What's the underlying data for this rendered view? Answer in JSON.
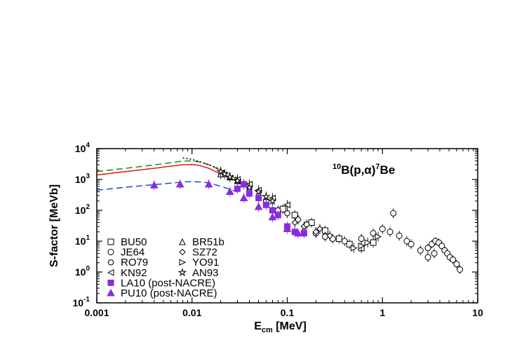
{
  "chart_data": {
    "type": "scatter",
    "title": "",
    "annotation": {
      "pre": "10",
      "a": "B(p,",
      "b": "α",
      "c": ")",
      "post_sup": "7",
      "post": "Be"
    },
    "xlabel": {
      "main": "E",
      "sub": "cm",
      "rest": " [MeV]"
    },
    "ylabel": "S-factor [MeVb]",
    "xscale": "log",
    "yscale": "log",
    "xlim": [
      0.001,
      10
    ],
    "ylim": [
      0.1,
      10000
    ],
    "x_tick_labels": [
      "0.001",
      "0.01",
      "0.1",
      "1",
      "10"
    ],
    "y_tick_labels": [
      {
        "base": "10",
        "exp": "-1"
      },
      {
        "base": "10",
        "exp": "0"
      },
      {
        "base": "10",
        "exp": "1"
      },
      {
        "base": "10",
        "exp": "2"
      },
      {
        "base": "10",
        "exp": "3"
      },
      {
        "base": "10",
        "exp": "4"
      }
    ],
    "legend": {
      "placement": "left",
      "entries": [
        {
          "label": "BU50",
          "marker": "square",
          "color": "#000000"
        },
        {
          "label": "BR51b",
          "marker": "triangle-up",
          "color": "#000000"
        },
        {
          "label": "JE64",
          "marker": "circle",
          "color": "#000000"
        },
        {
          "label": "SZ72",
          "marker": "diamond",
          "color": "#000000"
        },
        {
          "label": "RO79",
          "marker": "hexagon",
          "color": "#000000"
        },
        {
          "label": "YO91",
          "marker": "triangle-right",
          "color": "#000000"
        },
        {
          "label": "KN92",
          "marker": "triangle-left",
          "color": "#000000"
        },
        {
          "label": "AN93",
          "marker": "star",
          "color": "#000000"
        },
        {
          "label": "LA10 (post-NACRE)",
          "marker": "filled-square",
          "color": "#8a2be2"
        },
        {
          "label": "PU10 (post-NACRE)",
          "marker": "filled-triangle",
          "color": "#8a2be2"
        }
      ]
    },
    "curves": [
      {
        "style": "dashed",
        "color": "#2e8b2e",
        "points": [
          [
            0.001,
            1800
          ],
          [
            0.002,
            2300
          ],
          [
            0.004,
            2950
          ],
          [
            0.006,
            3500
          ],
          [
            0.008,
            3950
          ],
          [
            0.01,
            4000
          ],
          [
            0.012,
            3700
          ],
          [
            0.015,
            3000
          ],
          [
            0.02,
            2000
          ],
          [
            0.03,
            1000
          ]
        ]
      },
      {
        "style": "solid",
        "color": "#e32222",
        "points": [
          [
            0.001,
            1400
          ],
          [
            0.002,
            1800
          ],
          [
            0.004,
            2300
          ],
          [
            0.006,
            2700
          ],
          [
            0.008,
            3000
          ],
          [
            0.01,
            3050
          ],
          [
            0.012,
            2850
          ],
          [
            0.015,
            2300
          ],
          [
            0.02,
            1500
          ],
          [
            0.03,
            850
          ]
        ]
      },
      {
        "style": "dashed",
        "color": "#2a4fd8",
        "points": [
          [
            0.001,
            450
          ],
          [
            0.002,
            560
          ],
          [
            0.004,
            680
          ],
          [
            0.006,
            760
          ],
          [
            0.008,
            830
          ],
          [
            0.01,
            850
          ],
          [
            0.012,
            830
          ],
          [
            0.015,
            780
          ],
          [
            0.02,
            600
          ],
          [
            0.03,
            400
          ]
        ]
      },
      {
        "style": "dotted",
        "color": "#000000",
        "points": [
          [
            0.008,
            5000
          ],
          [
            0.01,
            4500
          ],
          [
            0.013,
            3500
          ],
          [
            0.017,
            2600
          ],
          [
            0.02,
            2100
          ],
          [
            0.025,
            1500
          ],
          [
            0.03,
            1100
          ]
        ]
      }
    ],
    "series": [
      {
        "name": "BU50",
        "marker": "square",
        "color": "#000000",
        "points": [
          [
            0.06,
            180
          ],
          [
            0.09,
            110
          ],
          [
            0.12,
            70
          ],
          [
            0.18,
            40
          ],
          [
            0.25,
            22
          ],
          [
            0.35,
            12
          ],
          [
            0.45,
            8
          ],
          [
            0.6,
            6
          ],
          [
            0.8,
            9
          ]
        ]
      },
      {
        "name": "BR51b",
        "marker": "triangle-up",
        "color": "#000000",
        "points": [
          [
            0.02,
            1500
          ],
          [
            0.025,
            1200
          ],
          [
            0.03,
            900
          ],
          [
            0.04,
            600
          ]
        ]
      },
      {
        "name": "JE64",
        "marker": "circle",
        "color": "#000000",
        "points": [
          [
            0.15,
            20
          ],
          [
            0.2,
            18
          ],
          [
            0.25,
            14
          ],
          [
            0.3,
            12
          ],
          [
            0.4,
            10
          ],
          [
            0.6,
            12
          ],
          [
            0.8,
            18
          ],
          [
            1.0,
            25
          ],
          [
            1.2,
            20
          ],
          [
            1.3,
            80
          ],
          [
            1.5,
            15
          ],
          [
            1.8,
            10
          ],
          [
            2.0,
            8
          ],
          [
            2.5,
            5
          ],
          [
            3.0,
            3
          ],
          [
            3.5,
            4
          ]
        ]
      },
      {
        "name": "SZ72",
        "marker": "diamond",
        "color": "#000000",
        "points": [
          [
            0.12,
            40
          ],
          [
            0.15,
            30
          ],
          [
            0.2,
            20
          ],
          [
            0.22,
            25
          ],
          [
            0.28,
            15
          ]
        ]
      },
      {
        "name": "RO79",
        "marker": "hexagon",
        "color": "#000000",
        "points": [
          [
            0.08,
            100
          ],
          [
            0.1,
            80
          ],
          [
            0.13,
            50
          ],
          [
            0.16,
            35
          ]
        ]
      },
      {
        "name": "YO91",
        "marker": "triangle-right",
        "color": "#000000",
        "points": [
          [
            0.5,
            6
          ],
          [
            0.6,
            7
          ],
          [
            0.7,
            9
          ],
          [
            0.9,
            14
          ]
        ]
      },
      {
        "name": "KN92",
        "marker": "triangle-left",
        "color": "#000000",
        "points": [
          [
            0.03,
            1000
          ],
          [
            0.04,
            700
          ],
          [
            0.05,
            450
          ],
          [
            0.07,
            250
          ],
          [
            0.1,
            150
          ]
        ]
      },
      {
        "name": "AN93",
        "marker": "star",
        "color": "#000000",
        "points": [
          [
            0.02,
            1800
          ],
          [
            0.022,
            1500
          ],
          [
            0.025,
            1200
          ],
          [
            0.03,
            900
          ],
          [
            0.035,
            700
          ],
          [
            0.04,
            550
          ],
          [
            0.05,
            400
          ],
          [
            0.06,
            280
          ],
          [
            0.07,
            200
          ]
        ]
      },
      {
        "name": "LA10 (post-NACRE)",
        "marker": "filled-square",
        "color": "#8a2be2",
        "points": [
          [
            0.03,
            500
          ],
          [
            0.035,
            700
          ],
          [
            0.04,
            350
          ],
          [
            0.05,
            250
          ],
          [
            0.06,
            150
          ],
          [
            0.07,
            100
          ],
          [
            0.08,
            70
          ],
          [
            0.1,
            30
          ],
          [
            0.12,
            20
          ],
          [
            0.15,
            18
          ]
        ]
      },
      {
        "name": "PU10 (post-NACRE)",
        "marker": "filled-triangle",
        "color": "#8a2be2",
        "points": [
          [
            0.004,
            650
          ],
          [
            0.0075,
            700
          ],
          [
            0.015,
            700
          ],
          [
            0.025,
            400
          ],
          [
            0.035,
            250
          ],
          [
            0.05,
            130
          ],
          [
            0.07,
            60
          ],
          [
            0.1,
            25
          ],
          [
            0.13,
            18
          ]
        ]
      }
    ],
    "resonance_points": {
      "marker": "circle",
      "color": "#000000",
      "points": [
        [
          3.0,
          6
        ],
        [
          3.3,
          8
        ],
        [
          3.6,
          10
        ],
        [
          3.9,
          9
        ],
        [
          4.2,
          7
        ],
        [
          4.5,
          5
        ],
        [
          4.8,
          4
        ],
        [
          5.1,
          3
        ],
        [
          5.5,
          2.5
        ],
        [
          6.0,
          1.8
        ],
        [
          6.5,
          1.2
        ]
      ]
    }
  }
}
